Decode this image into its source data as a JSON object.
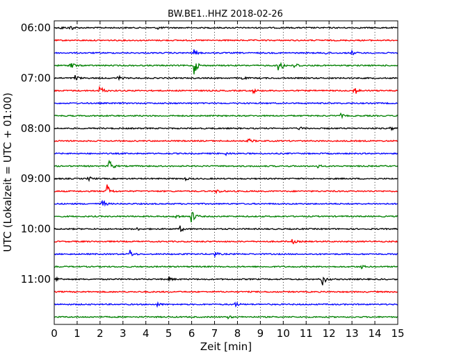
{
  "chart_data": {
    "type": "line",
    "title": "BW.BE1..HHZ 2018-02-26",
    "xlabel": "Zeit  [min]",
    "ylabel": "UTC (Lokalzeit = UTC + 01:00)",
    "xlim": [
      0,
      15
    ],
    "x_ticks": [
      0,
      1,
      2,
      3,
      4,
      5,
      6,
      7,
      8,
      9,
      10,
      11,
      12,
      13,
      14,
      15
    ],
    "grid": {
      "vertical_dotted": true
    },
    "row_interval_minutes": 15,
    "rows": [
      {
        "label": "06:00",
        "color": "#000000",
        "events": [
          [
            0.3,
            0.3
          ],
          [
            0.7,
            0.6
          ],
          [
            4.5,
            0.4
          ]
        ]
      },
      {
        "label": "",
        "color": "#ff0000",
        "events": []
      },
      {
        "label": "",
        "color": "#0000ff",
        "events": [
          [
            6.1,
            0.6
          ],
          [
            11.8,
            0.3
          ],
          [
            13.0,
            0.4
          ]
        ]
      },
      {
        "label": "",
        "color": "#008000",
        "events": [
          [
            0.7,
            1.2
          ],
          [
            6.1,
            2.0
          ],
          [
            9.8,
            2.0
          ],
          [
            10.5,
            0.8
          ]
        ]
      },
      {
        "label": "07:00",
        "color": "#000000",
        "events": [
          [
            0.9,
            0.7
          ],
          [
            2.8,
            0.5
          ],
          [
            8.2,
            0.3
          ]
        ]
      },
      {
        "label": "",
        "color": "#ff0000",
        "events": [
          [
            2.0,
            1.2
          ],
          [
            8.7,
            0.5
          ],
          [
            13.1,
            1.0
          ]
        ]
      },
      {
        "label": "",
        "color": "#0000ff",
        "events": []
      },
      {
        "label": "",
        "color": "#008000",
        "events": [
          [
            12.5,
            0.4
          ]
        ]
      },
      {
        "label": "08:00",
        "color": "#000000",
        "events": [
          [
            10.7,
            0.3
          ],
          [
            14.7,
            0.3
          ]
        ]
      },
      {
        "label": "",
        "color": "#ff0000",
        "events": [
          [
            8.5,
            0.5
          ]
        ]
      },
      {
        "label": "",
        "color": "#0000ff",
        "events": [
          [
            7.5,
            0.3
          ]
        ]
      },
      {
        "label": "",
        "color": "#008000",
        "events": [
          [
            2.4,
            1.5
          ],
          [
            11.5,
            0.3
          ]
        ]
      },
      {
        "label": "09:00",
        "color": "#000000",
        "events": [
          [
            1.5,
            0.5
          ],
          [
            5.7,
            0.3
          ]
        ]
      },
      {
        "label": "",
        "color": "#ff0000",
        "events": [
          [
            2.3,
            1.6
          ],
          [
            7.1,
            0.5
          ]
        ]
      },
      {
        "label": "",
        "color": "#0000ff",
        "events": [
          [
            2.1,
            0.9
          ]
        ]
      },
      {
        "label": "",
        "color": "#008000",
        "events": [
          [
            5.3,
            0.6
          ],
          [
            6.0,
            1.6
          ]
        ]
      },
      {
        "label": "10:00",
        "color": "#000000",
        "events": [
          [
            5.5,
            0.6
          ],
          [
            3.6,
            0.3
          ]
        ]
      },
      {
        "label": "",
        "color": "#ff0000",
        "events": [
          [
            10.4,
            0.5
          ]
        ]
      },
      {
        "label": "",
        "color": "#0000ff",
        "events": [
          [
            3.3,
            0.9
          ],
          [
            7.0,
            0.5
          ]
        ]
      },
      {
        "label": "",
        "color": "#008000",
        "events": [
          [
            13.4,
            0.4
          ]
        ]
      },
      {
        "label": "11:00",
        "color": "#000000",
        "events": [
          [
            0.1,
            0.5
          ],
          [
            5.0,
            0.5
          ],
          [
            11.7,
            1.5
          ]
        ]
      },
      {
        "label": "",
        "color": "#ff0000",
        "events": []
      },
      {
        "label": "",
        "color": "#0000ff",
        "events": [
          [
            4.5,
            0.4
          ],
          [
            7.9,
            0.5
          ]
        ]
      },
      {
        "label": "",
        "color": "#008000",
        "events": [
          [
            7.6,
            0.3
          ]
        ]
      }
    ]
  }
}
